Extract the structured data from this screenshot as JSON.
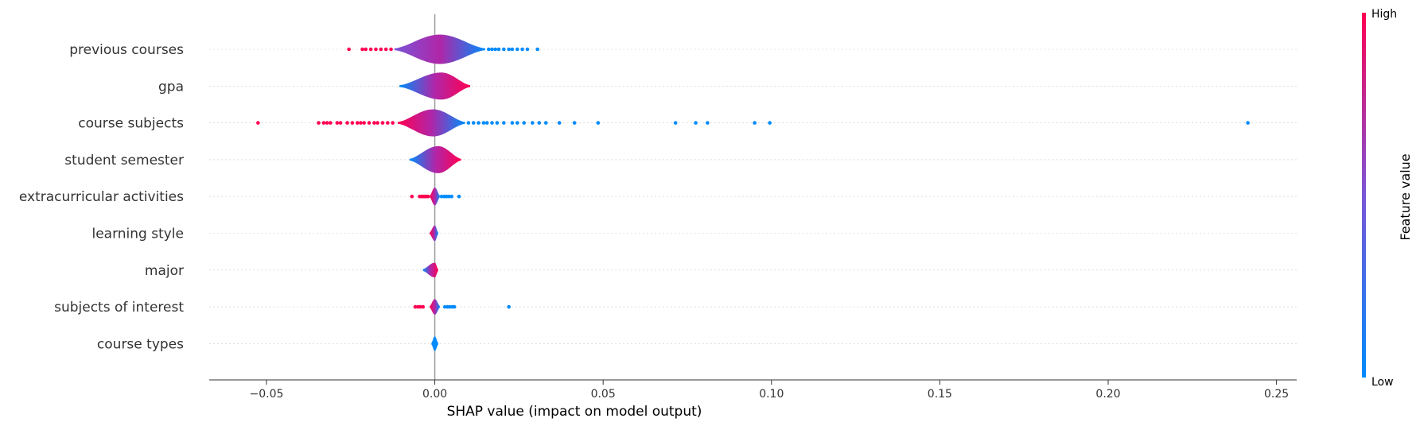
{
  "chart_data": {
    "type": "scatter",
    "subtype": "shap-violin-summary",
    "xlabel": "SHAP value (impact on model output)",
    "xlim": [
      -0.067,
      0.256
    ],
    "xticks": [
      -0.05,
      0.0,
      0.05,
      0.1,
      0.15,
      0.2,
      0.25
    ],
    "xtick_labels": [
      "−0.05",
      "0.00",
      "0.05",
      "0.10",
      "0.15",
      "0.20",
      "0.25"
    ],
    "zero_line": 0.0,
    "row_gridlines": true,
    "colorbar": {
      "title": "Feature value",
      "high_label": "High",
      "low_label": "Low",
      "low_color": "#008bfb",
      "high_color": "#ff0051"
    },
    "features": [
      {
        "name": "previous courses",
        "body_range": [
          -0.012,
          0.015
        ],
        "peak": 0.0015,
        "halfwidth_peak": 0.6,
        "color_low_side": "#7a55d8",
        "color_high_side": "#008bfb",
        "outliers_low_feature": [],
        "outliers_high_feature": [
          -0.0255,
          -0.0215,
          -0.0205,
          -0.019,
          -0.0175,
          -0.016,
          -0.0145,
          -0.013
        ],
        "outliers_blue": [
          0.016,
          0.017,
          0.018,
          0.019,
          0.0205,
          0.022,
          0.023,
          0.0245,
          0.026,
          0.0275,
          0.0305
        ]
      },
      {
        "name": "gpa",
        "body_range": [
          -0.0105,
          0.0105
        ],
        "peak": 0.002,
        "halfwidth_peak": 0.55,
        "color_low_side": "#008bfb",
        "color_high_side": "#ff0051",
        "outliers_high_feature": [],
        "outliers_blue": []
      },
      {
        "name": "course subjects",
        "body_range": [
          -0.011,
          0.009
        ],
        "peak": -0.0005,
        "halfwidth_peak": 0.55,
        "color_low_side": "#ff0051",
        "color_high_side": "#008bfb",
        "outliers_high_feature": [
          -0.0525,
          -0.0345,
          -0.033,
          -0.032,
          -0.031,
          -0.029,
          -0.028,
          -0.026,
          -0.0245,
          -0.023,
          -0.022,
          -0.021,
          -0.0195,
          -0.018,
          -0.017,
          -0.0155,
          -0.014,
          -0.0125
        ],
        "outliers_blue": [
          0.01,
          0.0115,
          0.013,
          0.0145,
          0.0155,
          0.017,
          0.0185,
          0.0205,
          0.023,
          0.0245,
          0.0265,
          0.029,
          0.031,
          0.033,
          0.037,
          0.0415,
          0.0485,
          0.0715,
          0.0775,
          0.081,
          0.095,
          0.0995,
          0.2415
        ]
      },
      {
        "name": "student semester",
        "body_range": [
          -0.0075,
          0.0078
        ],
        "peak": 0.001,
        "halfwidth_peak": 0.55,
        "color_low_side": "#008bfb",
        "color_high_side": "#ff0051",
        "outliers_high_feature": [],
        "outliers_blue": []
      },
      {
        "name": "extracurricular activities",
        "body_range": [
          -0.0015,
          0.0015
        ],
        "peak": 0.0,
        "halfwidth_peak": 0.35,
        "color_low_side": "#ff0051",
        "color_high_side": "#008bfb",
        "outliers_high_feature": [
          -0.0068,
          -0.0045,
          -0.004,
          -0.0035,
          -0.003,
          -0.0025,
          -0.002
        ],
        "outliers_blue": [
          0.002,
          0.0028,
          0.0035,
          0.0042,
          0.005,
          0.0072
        ]
      },
      {
        "name": "learning style",
        "body_range": [
          -0.0015,
          0.001
        ],
        "peak": 0.0,
        "halfwidth_peak": 0.3,
        "color_low_side": "#ff0051",
        "color_high_side": "#008bfb",
        "outliers_high_feature": [],
        "outliers_blue": []
      },
      {
        "name": "major",
        "body_range": [
          -0.0035,
          0.001
        ],
        "peak": 0.0,
        "halfwidth_peak": 0.28,
        "color_low_side": "#008bfb",
        "color_high_side": "#ff0051",
        "outliers_high_feature": [],
        "outliers_blue": []
      },
      {
        "name": "subjects of interest",
        "body_range": [
          -0.0015,
          0.0015
        ],
        "peak": 0.0,
        "halfwidth_peak": 0.3,
        "color_low_side": "#ff0051",
        "color_high_side": "#008bfb",
        "outliers_high_feature": [
          -0.0058,
          -0.005,
          -0.0043,
          -0.0035
        ],
        "outliers_blue": [
          0.003,
          0.0038,
          0.0045,
          0.0052,
          0.0058,
          0.022
        ]
      },
      {
        "name": "course types",
        "body_range": [
          -0.001,
          0.001
        ],
        "peak": 0.0,
        "halfwidth_peak": 0.28,
        "color_low_side": "#008bfb",
        "color_high_side": "#008bfb",
        "outliers_high_feature": [],
        "outliers_blue": []
      }
    ]
  }
}
